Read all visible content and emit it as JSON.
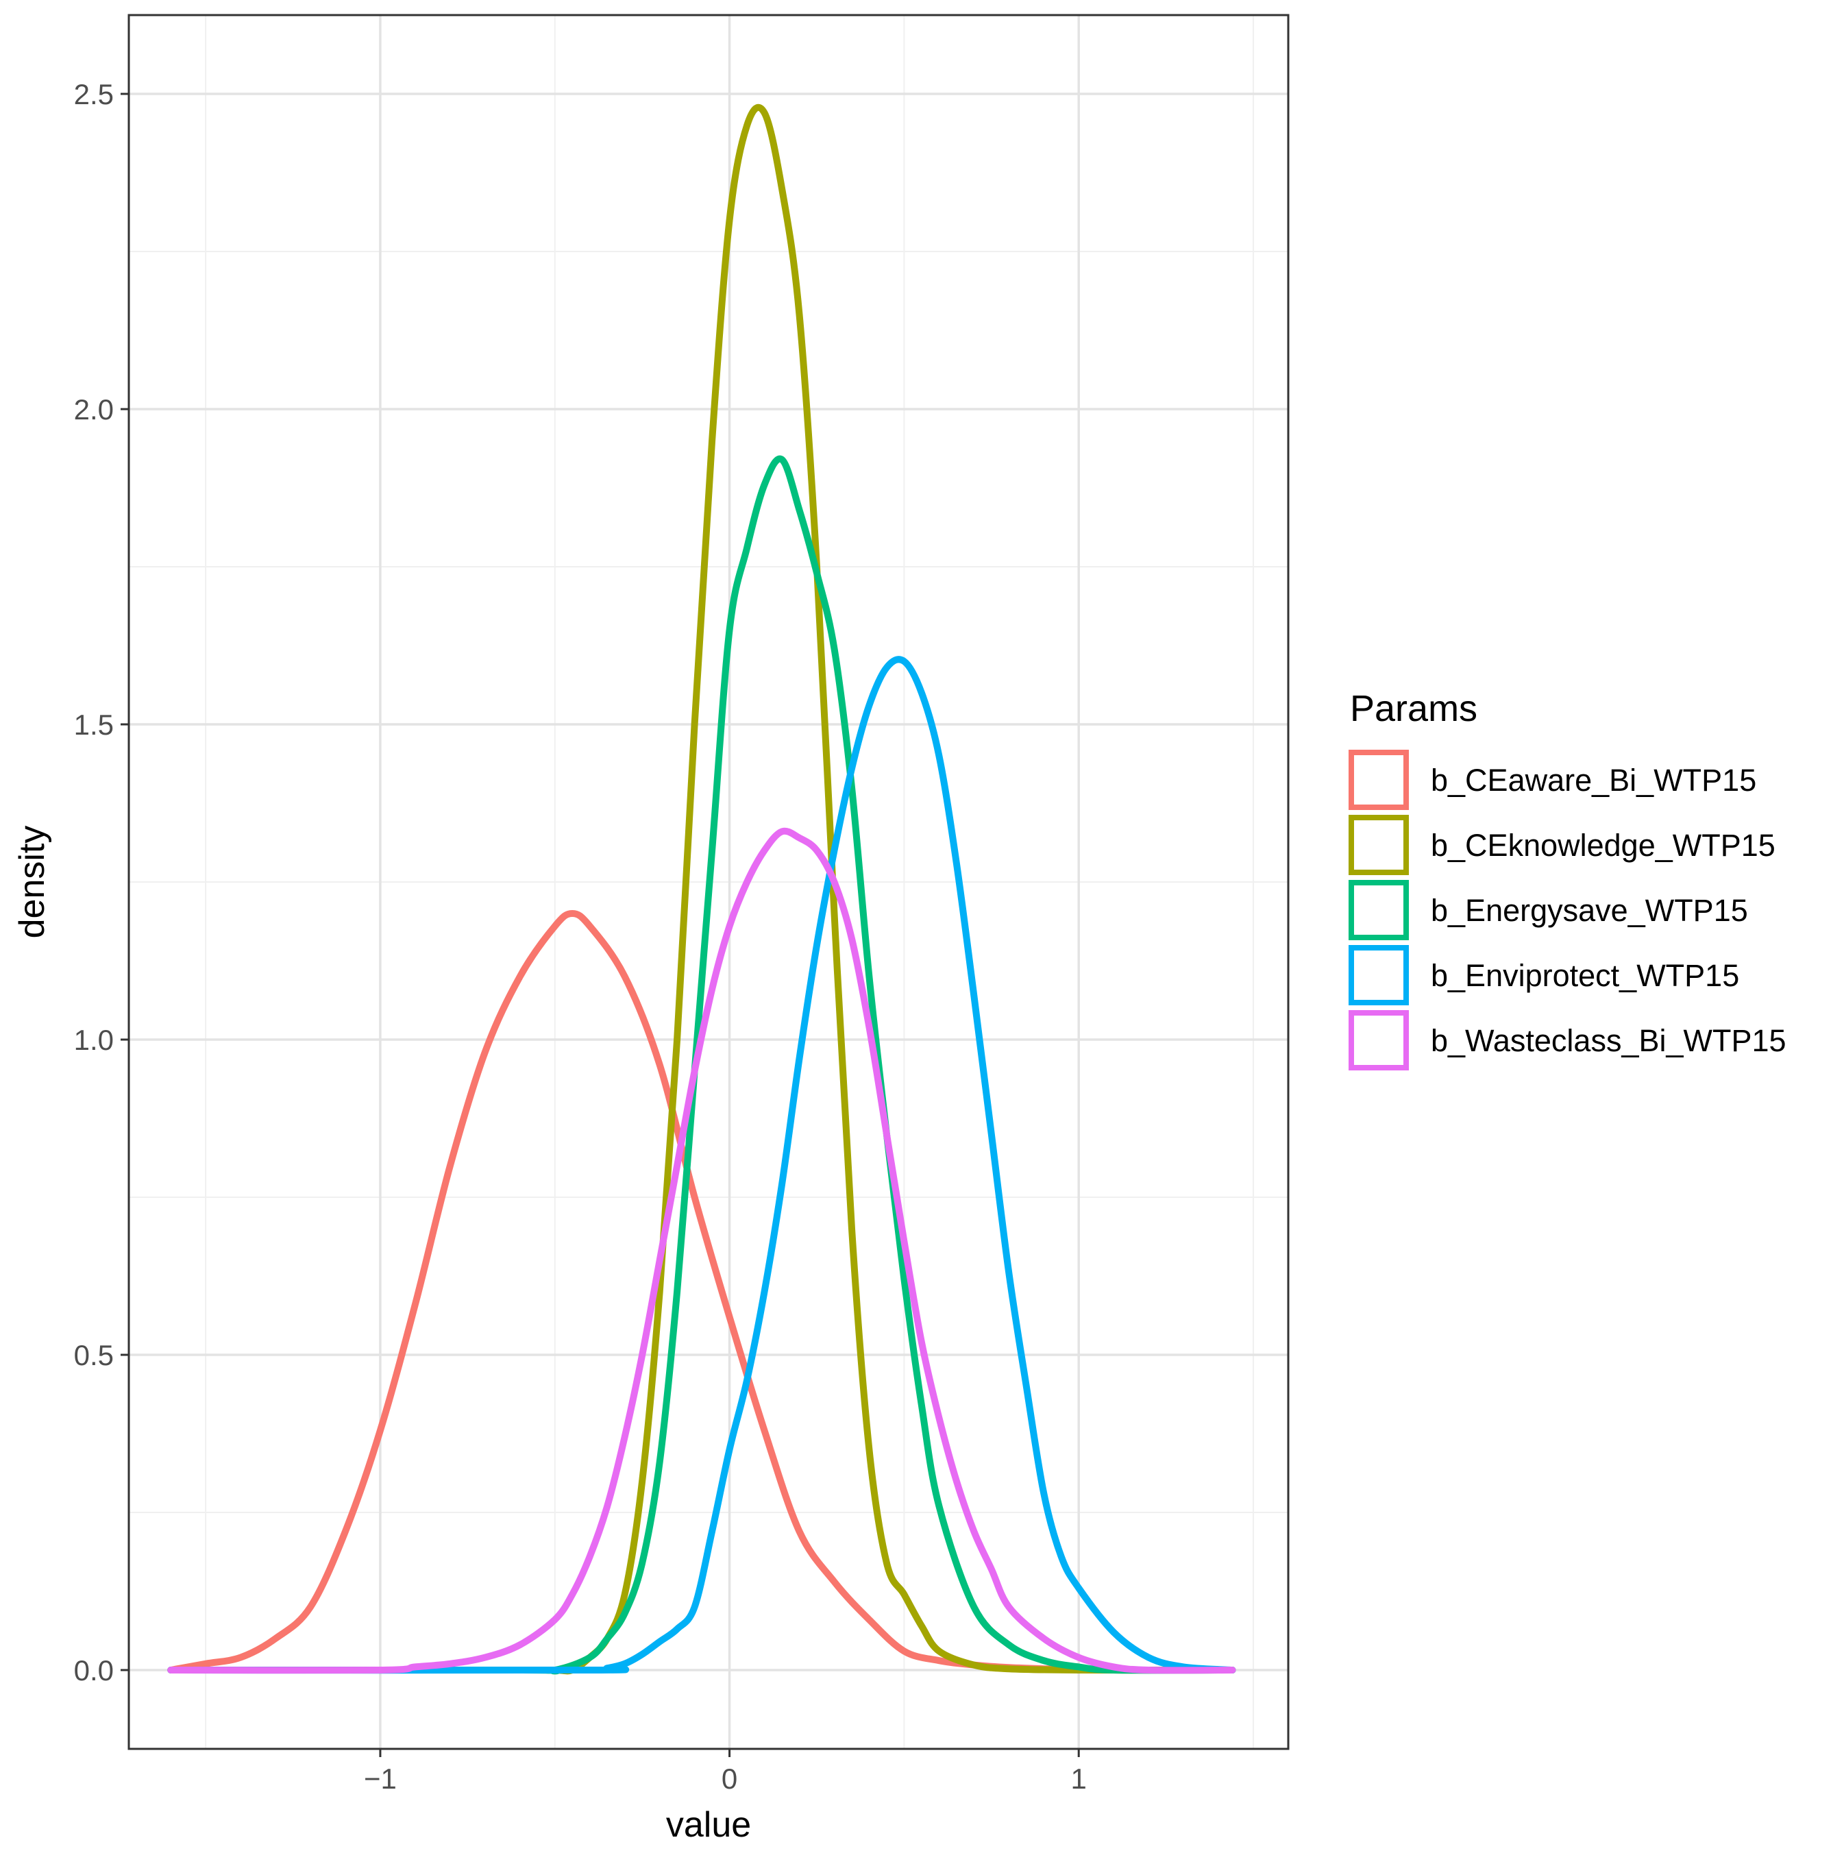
{
  "chart_data": {
    "type": "line",
    "title": "",
    "xlabel": "value",
    "ylabel": "density",
    "xlim": [
      -1.72,
      1.6
    ],
    "ylim": [
      -0.125,
      2.625
    ],
    "x_ticks": [
      -1,
      0,
      1
    ],
    "x_tick_labels": [
      "−1",
      "0",
      "1"
    ],
    "y_ticks": [
      0.0,
      0.5,
      1.0,
      1.5,
      2.0,
      2.5
    ],
    "y_tick_labels": [
      "0.0",
      "0.5",
      "1.0",
      "1.5",
      "2.0",
      "2.5"
    ],
    "grid": true,
    "legend": {
      "title": "Params",
      "position": "right"
    },
    "series": [
      {
        "name": "b_CEaware_Bi_WTP15",
        "color": "#F8766D",
        "x": [
          -1.6,
          -1.5,
          -1.4,
          -1.3,
          -1.2,
          -1.1,
          -1.0,
          -0.9,
          -0.8,
          -0.7,
          -0.6,
          -0.5,
          -0.45,
          -0.4,
          -0.3,
          -0.2,
          -0.1,
          0.0,
          0.1,
          0.2,
          0.3,
          0.4,
          0.5,
          0.6,
          0.7,
          0.8,
          0.9,
          1.0,
          1.1,
          1.2,
          1.3,
          1.44
        ],
        "y": [
          0.0,
          0.01,
          0.02,
          0.05,
          0.1,
          0.22,
          0.38,
          0.58,
          0.8,
          0.98,
          1.1,
          1.18,
          1.2,
          1.18,
          1.1,
          0.96,
          0.75,
          0.56,
          0.38,
          0.22,
          0.14,
          0.08,
          0.03,
          0.015,
          0.008,
          0.004,
          0.002,
          0.001,
          0.0,
          0.0,
          0.0,
          0.0
        ]
      },
      {
        "name": "b_CEknowledge_WTP15",
        "color": "#A3A500",
        "x": [
          -1.6,
          -0.6,
          -0.5,
          -0.45,
          -0.4,
          -0.35,
          -0.3,
          -0.25,
          -0.2,
          -0.15,
          -0.1,
          -0.05,
          0.0,
          0.05,
          0.1,
          0.15,
          0.2,
          0.25,
          0.3,
          0.35,
          0.4,
          0.45,
          0.5,
          0.55,
          0.6,
          0.7,
          0.8,
          1.0,
          1.44
        ],
        "y": [
          0.0,
          0.0,
          0.0,
          0.0,
          0.02,
          0.05,
          0.12,
          0.3,
          0.6,
          1.0,
          1.5,
          1.95,
          2.3,
          2.45,
          2.47,
          2.35,
          2.15,
          1.75,
          1.2,
          0.7,
          0.35,
          0.17,
          0.12,
          0.07,
          0.03,
          0.008,
          0.002,
          0.0,
          0.0
        ]
      },
      {
        "name": "b_Energysave_WTP15",
        "color": "#00BF7D",
        "x": [
          -1.6,
          -0.6,
          -0.5,
          -0.4,
          -0.35,
          -0.3,
          -0.25,
          -0.2,
          -0.15,
          -0.1,
          -0.05,
          0.0,
          0.05,
          0.1,
          0.15,
          0.2,
          0.25,
          0.3,
          0.35,
          0.4,
          0.45,
          0.5,
          0.55,
          0.6,
          0.7,
          0.8,
          0.9,
          1.0,
          1.1,
          1.44
        ],
        "y": [
          0.0,
          0.0,
          0.0,
          0.02,
          0.05,
          0.09,
          0.17,
          0.33,
          0.6,
          0.95,
          1.3,
          1.65,
          1.78,
          1.88,
          1.92,
          1.84,
          1.74,
          1.62,
          1.4,
          1.1,
          0.85,
          0.62,
          0.42,
          0.26,
          0.1,
          0.04,
          0.015,
          0.005,
          0.0,
          0.0
        ]
      },
      {
        "name": "b_Enviprotect_WTP15",
        "color": "#00B0F6",
        "x": [
          -1.6,
          -0.4,
          -0.35,
          -0.3,
          -0.25,
          -0.2,
          -0.15,
          -0.1,
          -0.05,
          0.0,
          0.05,
          0.1,
          0.15,
          0.2,
          0.25,
          0.3,
          0.35,
          0.4,
          0.45,
          0.5,
          0.55,
          0.6,
          0.65,
          0.7,
          0.75,
          0.8,
          0.85,
          0.9,
          0.95,
          1.0,
          1.1,
          1.2,
          1.3,
          1.44
        ],
        "y": [
          0.0,
          0.0,
          0.003,
          0.01,
          0.025,
          0.045,
          0.065,
          0.1,
          0.22,
          0.35,
          0.46,
          0.6,
          0.77,
          0.97,
          1.15,
          1.3,
          1.43,
          1.53,
          1.59,
          1.6,
          1.55,
          1.45,
          1.28,
          1.07,
          0.85,
          0.63,
          0.45,
          0.28,
          0.18,
          0.13,
          0.06,
          0.02,
          0.005,
          0.0
        ]
      },
      {
        "name": "b_Wasteclass_Bi_WTP15",
        "color": "#E76BF3",
        "x": [
          -1.6,
          -1.0,
          -0.9,
          -0.8,
          -0.7,
          -0.6,
          -0.5,
          -0.45,
          -0.4,
          -0.35,
          -0.3,
          -0.25,
          -0.2,
          -0.15,
          -0.1,
          -0.05,
          0.0,
          0.05,
          0.1,
          0.15,
          0.2,
          0.25,
          0.3,
          0.35,
          0.4,
          0.45,
          0.5,
          0.55,
          0.6,
          0.65,
          0.7,
          0.75,
          0.8,
          0.9,
          1.0,
          1.1,
          1.2,
          1.44
        ],
        "y": [
          0.0,
          0.0,
          0.005,
          0.01,
          0.02,
          0.04,
          0.08,
          0.12,
          0.18,
          0.26,
          0.37,
          0.5,
          0.65,
          0.8,
          0.95,
          1.08,
          1.18,
          1.25,
          1.3,
          1.33,
          1.32,
          1.3,
          1.25,
          1.16,
          1.02,
          0.85,
          0.68,
          0.52,
          0.4,
          0.3,
          0.22,
          0.16,
          0.1,
          0.05,
          0.02,
          0.005,
          0.0,
          0.0
        ]
      }
    ]
  }
}
